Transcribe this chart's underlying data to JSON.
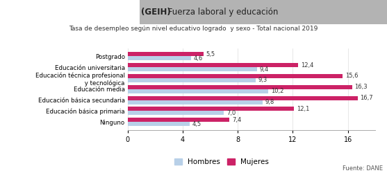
{
  "title_bold": "(GEIH)",
  "title_normal": " Fuerza laboral y educación",
  "subtitle": "Tasa de desempleo según nivel educativo logrado  y sexo - Total nacional 2019",
  "categories": [
    "Postgrado",
    "Educación universitaria",
    "Educación técnica profesional\n y tecnológica",
    "Educación media",
    "Educación básica secundaria",
    "Educación básica primaria",
    "Ninguno"
  ],
  "hombres": [
    4.6,
    9.4,
    9.3,
    10.2,
    9.8,
    7.0,
    4.5
  ],
  "mujeres": [
    5.5,
    12.4,
    15.6,
    16.3,
    16.7,
    12.1,
    7.4
  ],
  "color_hombres": "#b8d0e8",
  "color_mujeres": "#cc2266",
  "xlim": [
    0,
    18
  ],
  "xticks": [
    0,
    4,
    8,
    12,
    16
  ],
  "legend_hombres": "Hombres",
  "legend_mujeres": "Mujeres",
  "source": "Fuente: DANE",
  "title_bg_color": "#b3b3b3",
  "bar_height": 0.38
}
